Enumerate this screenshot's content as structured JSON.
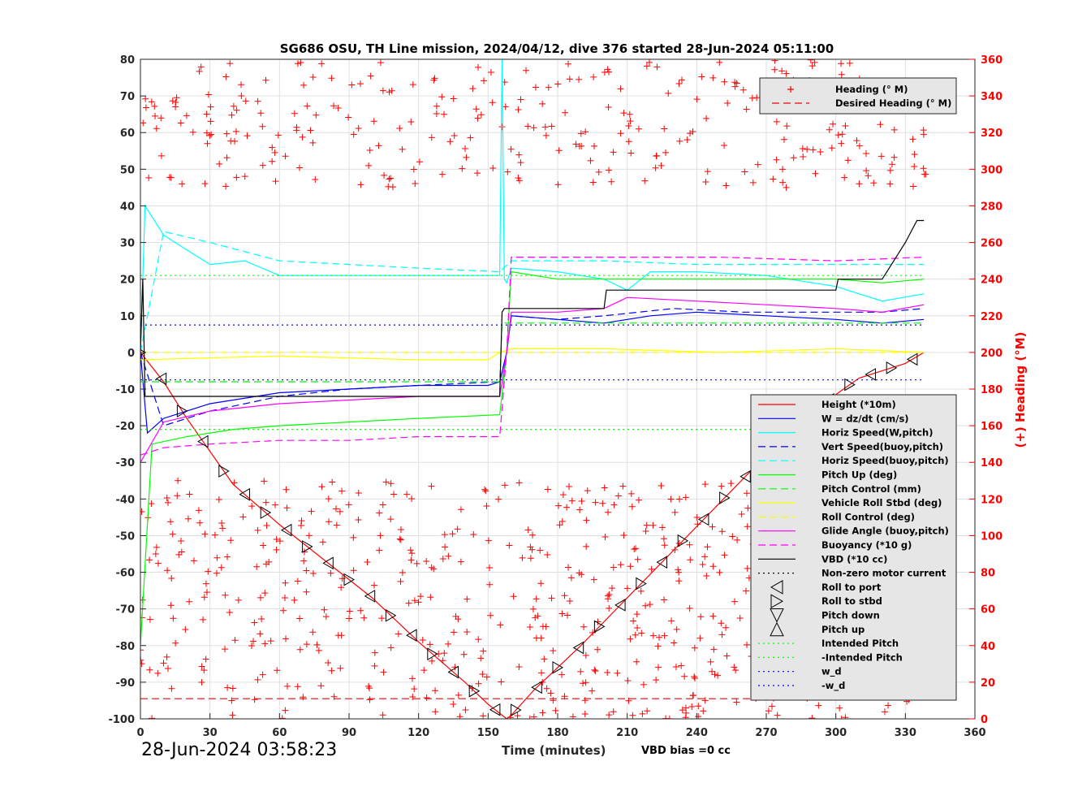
{
  "chart_data": {
    "type": "line",
    "title": "SG686 OSU, TH Line mission, 2024/04/12, dive 376 started 28-Jun-2024 05:11:00",
    "xlabel": "Time (minutes)",
    "ylabel": "",
    "y2label": "(+) Heading (°M)",
    "xlim": [
      0,
      360
    ],
    "ylim": [
      -100,
      80
    ],
    "y2lim": [
      0,
      360
    ],
    "xticks": [
      0,
      30,
      60,
      90,
      120,
      150,
      180,
      210,
      240,
      270,
      300,
      330,
      360
    ],
    "yticks": [
      -100,
      -90,
      -80,
      -70,
      -60,
      -50,
      -40,
      -30,
      -20,
      -10,
      0,
      10,
      20,
      30,
      40,
      50,
      60,
      70,
      80
    ],
    "y2ticks": [
      0,
      20,
      40,
      60,
      80,
      100,
      120,
      140,
      160,
      180,
      200,
      220,
      240,
      260,
      280,
      300,
      320,
      340,
      360
    ],
    "grid": true,
    "timestamp": "28-Jun-2024 03:58:23",
    "note": "VBD bias =0 cc",
    "heading_legend_placement": "top-right",
    "main_legend_placement": "bottom-right",
    "heading_legend": [
      {
        "name": "Heading (° M)",
        "color": "#ff0000",
        "style": "plus"
      },
      {
        "name": "Desired Heading (° M)",
        "color": "#ff0000",
        "style": "dash"
      }
    ],
    "legend": [
      {
        "name": "Height (*10m)",
        "color": "#ff0000",
        "style": "solid"
      },
      {
        "name": "W = dz/dt (cm/s)",
        "color": "#0000ff",
        "style": "solid"
      },
      {
        "name": "Horiz Speed(W,pitch)",
        "color": "#00ffff",
        "style": "solid"
      },
      {
        "name": "Vert Speed(buoy,pitch)",
        "color": "#0000ff",
        "style": "dash"
      },
      {
        "name": "Horiz Speed(buoy,pitch)",
        "color": "#00ffff",
        "style": "dash"
      },
      {
        "name": "Pitch Up (deg)",
        "color": "#00ff00",
        "style": "solid"
      },
      {
        "name": "Pitch Control (mm)",
        "color": "#00ff00",
        "style": "dash"
      },
      {
        "name": "Vehicle Roll Stbd (deg)",
        "color": "#ffff00",
        "style": "solid"
      },
      {
        "name": "Roll Control (deg)",
        "color": "#ffff00",
        "style": "dash"
      },
      {
        "name": "Glide Angle (buoy,pitch)",
        "color": "#ff00ff",
        "style": "solid"
      },
      {
        "name": "Buoyancy (*10 g)",
        "color": "#ff00ff",
        "style": "dash"
      },
      {
        "name": "VBD (*10 cc)",
        "color": "#000000",
        "style": "solid"
      },
      {
        "name": "Non-zero motor current",
        "color": "#000000",
        "style": "dot"
      },
      {
        "name": "Roll to port",
        "color": "#000000",
        "style": "tri-left"
      },
      {
        "name": "Roll to stbd",
        "color": "#000000",
        "style": "tri-right"
      },
      {
        "name": "Pitch down",
        "color": "#000000",
        "style": "tri-down"
      },
      {
        "name": "Pitch up",
        "color": "#000000",
        "style": "tri-up"
      },
      {
        "name": "Intended Pitch",
        "color": "#00ff00",
        "style": "dot"
      },
      {
        "name": "-Intended Pitch",
        "color": "#00ff00",
        "style": "dot"
      },
      {
        "name": "w_d",
        "color": "#0000ff",
        "style": "dot"
      },
      {
        "name": "-w_d",
        "color": "#0000ff",
        "style": "dot"
      }
    ],
    "series": [
      {
        "name": "Height (*10m)",
        "color": "#ff0000",
        "x": [
          0,
          10,
          20,
          40,
          60,
          80,
          100,
          120,
          140,
          150,
          156,
          158,
          160,
          170,
          190,
          210,
          230,
          250,
          270,
          290,
          310,
          330,
          338
        ],
        "y": [
          0,
          -8,
          -18,
          -36,
          -47,
          -57,
          -67,
          -79,
          -90,
          -96,
          -99,
          -100,
          -99,
          -92,
          -80,
          -67,
          -54,
          -41,
          -28,
          -16,
          -7,
          -3,
          0
        ]
      },
      {
        "name": "W = dz/dt (cm/s)",
        "color": "#0000ff",
        "x": [
          0,
          3,
          10,
          30,
          60,
          90,
          120,
          150,
          155,
          158,
          160,
          180,
          200,
          220,
          240,
          270,
          300,
          320,
          338
        ],
        "y": [
          0,
          -22,
          -18,
          -14,
          -11,
          -10,
          -9,
          -9,
          -8,
          0,
          10,
          9,
          8,
          10,
          11,
          10,
          9,
          8,
          9
        ]
      },
      {
        "name": "Horiz Speed(W,pitch)",
        "color": "#00ffff",
        "x": [
          0,
          2,
          10,
          20,
          30,
          45,
          60,
          90,
          120,
          155,
          156,
          157,
          158,
          160,
          180,
          200,
          210,
          220,
          240,
          270,
          300,
          320,
          338
        ],
        "y": [
          0,
          40,
          32,
          28,
          24,
          25,
          21,
          21,
          21,
          21,
          80,
          20,
          19,
          23,
          22,
          20,
          17,
          22,
          22,
          21,
          18,
          14,
          16
        ]
      },
      {
        "name": "Vert Speed(buoy,pitch)",
        "color": "#0000ff",
        "x": [
          0,
          10,
          30,
          60,
          90,
          120,
          155,
          158,
          160,
          180,
          200,
          230,
          260,
          290,
          320,
          338
        ],
        "y": [
          0,
          -20,
          -16,
          -12,
          -10,
          -9,
          -8,
          0,
          10,
          9,
          10,
          12,
          11,
          11,
          11,
          12
        ]
      },
      {
        "name": "Horiz Speed(buoy,pitch)",
        "color": "#00ffff",
        "x": [
          0,
          10,
          30,
          60,
          90,
          120,
          155,
          160,
          200,
          240,
          280,
          310,
          338
        ],
        "y": [
          0,
          33,
          30,
          25,
          24,
          23,
          22,
          25,
          25,
          24,
          24,
          24,
          24
        ]
      },
      {
        "name": "Pitch Up (deg)",
        "color": "#00ff00",
        "x": [
          0,
          5,
          20,
          40,
          60,
          90,
          120,
          155,
          158,
          160,
          180,
          210,
          240,
          270,
          300,
          320,
          338
        ],
        "y": [
          -80,
          -25,
          -23,
          -21,
          -20,
          -19,
          -18,
          -17,
          0,
          22,
          20,
          20,
          20,
          20,
          20,
          19,
          20
        ]
      },
      {
        "name": "Pitch Control (mm)",
        "color": "#00ff00",
        "x": [
          0,
          155,
          156,
          338
        ],
        "y": [
          -8,
          -8,
          8,
          8
        ]
      },
      {
        "name": "Vehicle Roll Stbd (deg)",
        "color": "#ffff00",
        "x": [
          0,
          60,
          120,
          150,
          155,
          160,
          200,
          250,
          300,
          338
        ],
        "y": [
          -2,
          -1,
          -2,
          -2,
          0,
          1,
          1,
          0,
          1,
          0
        ]
      },
      {
        "name": "Roll Control (deg)",
        "color": "#ffff00",
        "x": [
          0,
          338
        ],
        "y": [
          0,
          0
        ]
      },
      {
        "name": "Glide Angle (buoy,pitch)",
        "color": "#ff00ff",
        "x": [
          0,
          10,
          30,
          60,
          90,
          120,
          155,
          158,
          160,
          180,
          200,
          210,
          240,
          270,
          300,
          320,
          338
        ],
        "y": [
          -30,
          -19,
          -16,
          -14,
          -13,
          -12,
          -12,
          0,
          11,
          11,
          12,
          15,
          14,
          13,
          12,
          11,
          13
        ]
      },
      {
        "name": "Buoyancy (*10 g)",
        "color": "#ff00ff",
        "x": [
          0,
          10,
          30,
          60,
          90,
          120,
          155,
          158,
          160,
          200,
          250,
          300,
          338
        ],
        "y": [
          -28,
          -26,
          -25,
          -24,
          -24,
          -23,
          -23,
          0,
          26,
          26,
          26,
          25,
          26
        ]
      },
      {
        "name": "VBD (*10 cc)",
        "color": "#000000",
        "x": [
          0,
          1,
          2,
          155,
          156,
          157,
          200,
          201,
          300,
          301,
          320,
          325,
          330,
          335,
          338
        ],
        "y": [
          0,
          20,
          -12,
          -12,
          11,
          12,
          12,
          17,
          17,
          20,
          20,
          25,
          30,
          36,
          36
        ]
      },
      {
        "name": "Intended Pitch",
        "color": "#00ff00",
        "x": [
          0,
          338
        ],
        "y": [
          21,
          21
        ]
      },
      {
        "name": "-Intended Pitch",
        "color": "#00ff00",
        "x": [
          0,
          338
        ],
        "y": [
          -21,
          -21
        ]
      },
      {
        "name": "w_d",
        "color": "#0000ff",
        "x": [
          0,
          338
        ],
        "y": [
          7.5,
          7.5
        ]
      },
      {
        "name": "-w_d",
        "color": "#0000ff",
        "x": [
          0,
          338
        ],
        "y": [
          -7.5,
          -7.5
        ]
      },
      {
        "name": "Desired Heading (° M)",
        "color": "#ff0000",
        "axis": "right",
        "x": [
          0,
          338
        ],
        "y": [
          11,
          11
        ]
      }
    ]
  }
}
